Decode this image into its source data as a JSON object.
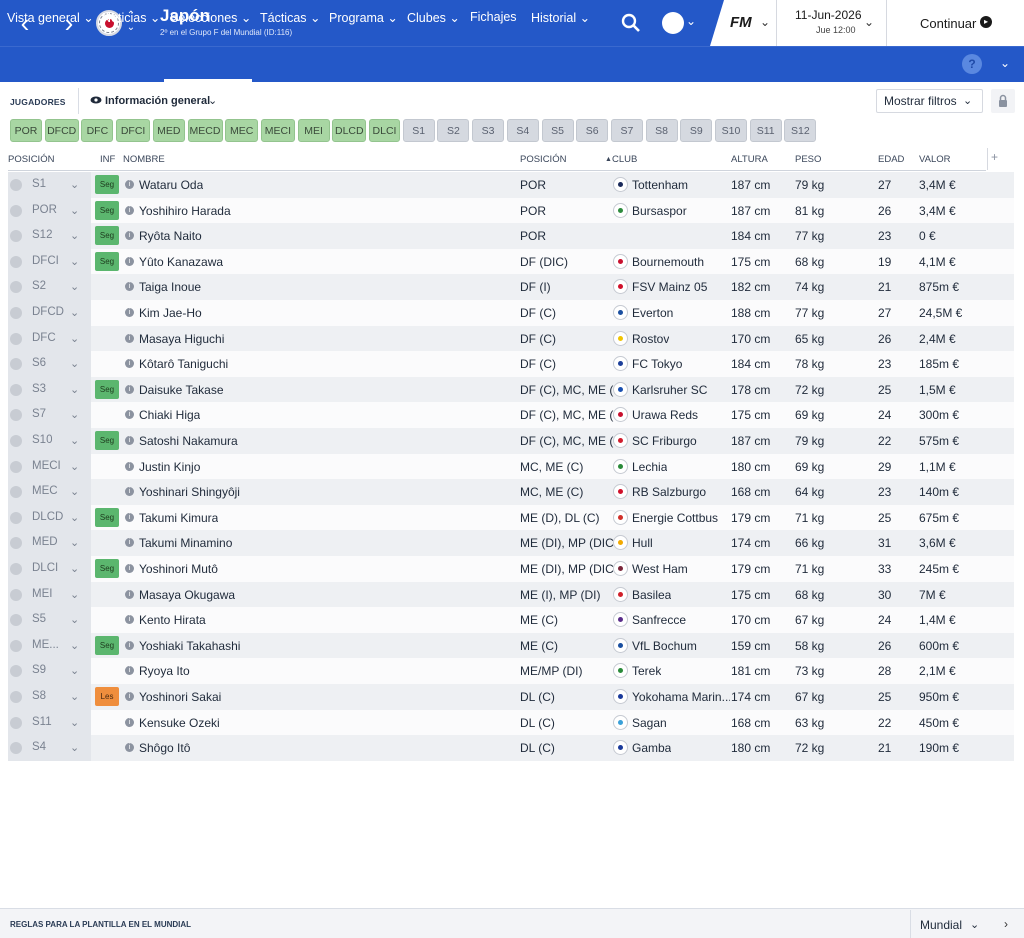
{
  "header": {
    "title": "Japón",
    "subtitle": "2º en el Grupo F del Mundial (ID:116)",
    "date": "11-Jun-2026",
    "time": "Jue 12:00",
    "continue_label": "Continuar",
    "logo_text": "FM"
  },
  "menu": [
    {
      "label": "Vista general ⌄"
    },
    {
      "label": "Noticias ⌄"
    },
    {
      "label": "Selecciones ⌄"
    },
    {
      "label": "Tácticas ⌄"
    },
    {
      "label": "Programa ⌄"
    },
    {
      "label": "Clubes ⌄"
    },
    {
      "label": "Fichajes"
    },
    {
      "label": "Historial ⌄"
    }
  ],
  "toolbar": {
    "section_label": "JUGADORES",
    "view_label": "Información general",
    "filters_label": "Mostrar filtros"
  },
  "chips": [
    {
      "label": "POR",
      "color": "green"
    },
    {
      "label": "DFCD",
      "color": "green"
    },
    {
      "label": "DFC",
      "color": "green"
    },
    {
      "label": "DFCI",
      "color": "green"
    },
    {
      "label": "MED",
      "color": "green"
    },
    {
      "label": "MECD",
      "color": "green"
    },
    {
      "label": "MEC",
      "color": "green"
    },
    {
      "label": "MECI",
      "color": "green"
    },
    {
      "label": "MEI",
      "color": "green"
    },
    {
      "label": "DLCD",
      "color": "green"
    },
    {
      "label": "DLCI",
      "color": "green"
    },
    {
      "label": "S1",
      "color": "grey"
    },
    {
      "label": "S2",
      "color": "grey"
    },
    {
      "label": "S3",
      "color": "grey"
    },
    {
      "label": "S4",
      "color": "grey"
    },
    {
      "label": "S5",
      "color": "grey"
    },
    {
      "label": "S6",
      "color": "grey"
    },
    {
      "label": "S7",
      "color": "grey"
    },
    {
      "label": "S8",
      "color": "grey"
    },
    {
      "label": "S9",
      "color": "grey"
    },
    {
      "label": "S10",
      "color": "grey"
    },
    {
      "label": "S11",
      "color": "grey"
    },
    {
      "label": "S12",
      "color": "grey"
    }
  ],
  "columns": {
    "position_slot": "POSICIÓN",
    "inf": "INF",
    "name": "NOMBRE",
    "position": "POSICIÓN",
    "club": "CLUB",
    "height": "ALTURA",
    "weight": "PESO",
    "age": "EDAD",
    "value": "VALOR"
  },
  "players": [
    {
      "slot": "S1",
      "badge": "Seg",
      "name": "Wataru Oda",
      "position": "POR",
      "club": "Tottenham",
      "club_color": "#1a2a5a",
      "height": "187 cm",
      "weight": "79 kg",
      "age": "27",
      "value": "3,4M €"
    },
    {
      "slot": "POR",
      "badge": "Seg",
      "name": "Yoshihiro Harada",
      "position": "POR",
      "club": "Bursaspor",
      "club_color": "#2e8b3e",
      "height": "187 cm",
      "weight": "81 kg",
      "age": "26",
      "value": "3,4M €"
    },
    {
      "slot": "S12",
      "badge": "Seg",
      "name": "Ryôta Naito",
      "position": "POR",
      "club": "",
      "club_color": "",
      "height": "184 cm",
      "weight": "77 kg",
      "age": "23",
      "value": "0 €"
    },
    {
      "slot": "DFCI",
      "badge": "Seg",
      "name": "Yûto Kanazawa",
      "position": "DF (DIC)",
      "club": "Bournemouth",
      "club_color": "#c8102e",
      "height": "175 cm",
      "weight": "68 kg",
      "age": "19",
      "value": "4,1M €"
    },
    {
      "slot": "S2",
      "badge": "",
      "name": "Taiga Inoue",
      "position": "DF (I)",
      "club": "FSV Mainz 05",
      "club_color": "#d0102a",
      "height": "182 cm",
      "weight": "74 kg",
      "age": "21",
      "value": "875m €"
    },
    {
      "slot": "DFCD",
      "badge": "",
      "name": "Kim Jae-Ho",
      "position": "DF (C)",
      "club": "Everton",
      "club_color": "#1b4fa0",
      "height": "188 cm",
      "weight": "77 kg",
      "age": "27",
      "value": "24,5M €"
    },
    {
      "slot": "DFC",
      "badge": "",
      "name": "Masaya Higuchi",
      "position": "DF (C)",
      "club": "Rostov",
      "club_color": "#f0c400",
      "height": "170 cm",
      "weight": "65 kg",
      "age": "26",
      "value": "2,4M €"
    },
    {
      "slot": "S6",
      "badge": "",
      "name": "Kôtarô Taniguchi",
      "position": "DF (C)",
      "club": "FC Tokyo",
      "club_color": "#1d3f9a",
      "height": "184 cm",
      "weight": "78 kg",
      "age": "23",
      "value": "185m €"
    },
    {
      "slot": "S3",
      "badge": "Seg",
      "name": "Daisuke Takase",
      "position": "DF (C), MC, ME (...",
      "club": "Karlsruher SC",
      "club_color": "#1a4fb0",
      "height": "178 cm",
      "weight": "72 kg",
      "age": "25",
      "value": "1,5M €"
    },
    {
      "slot": "S7",
      "badge": "",
      "name": "Chiaki Higa",
      "position": "DF (C), MC, ME (...",
      "club": "Urawa Reds",
      "club_color": "#c8102e",
      "height": "175 cm",
      "weight": "69 kg",
      "age": "24",
      "value": "300m €"
    },
    {
      "slot": "S10",
      "badge": "Seg",
      "name": "Satoshi Nakamura",
      "position": "DF (C), MC, ME (...",
      "club": "SC Friburgo",
      "club_color": "#d01e2e",
      "height": "187 cm",
      "weight": "79 kg",
      "age": "22",
      "value": "575m €"
    },
    {
      "slot": "MECI",
      "badge": "",
      "name": "Justin Kinjo",
      "position": "MC, ME (C)",
      "club": "Lechia",
      "club_color": "#2a8a3a",
      "height": "180 cm",
      "weight": "69 kg",
      "age": "29",
      "value": "1,1M €"
    },
    {
      "slot": "MEC",
      "badge": "",
      "name": "Yoshinari Shingyôji",
      "position": "MC, ME (C)",
      "club": "RB Salzburgo",
      "club_color": "#d0102a",
      "height": "168 cm",
      "weight": "64 kg",
      "age": "23",
      "value": "140m €"
    },
    {
      "slot": "DLCD",
      "badge": "Seg",
      "name": "Takumi Kimura",
      "position": "ME (D), DL (C)",
      "club": "Energie Cottbus",
      "club_color": "#d0302a",
      "height": "179 cm",
      "weight": "71 kg",
      "age": "25",
      "value": "675m €"
    },
    {
      "slot": "MED",
      "badge": "",
      "name": "Takumi Minamino",
      "position": "ME (DI), MP (DIC)",
      "club": "Hull",
      "club_color": "#f2a900",
      "height": "174 cm",
      "weight": "66 kg",
      "age": "31",
      "value": "3,6M €"
    },
    {
      "slot": "DLCI",
      "badge": "Seg",
      "name": "Yoshinori Mutô",
      "position": "ME (DI), MP (DIC...",
      "club": "West Ham",
      "club_color": "#7a263a",
      "height": "179 cm",
      "weight": "71 kg",
      "age": "33",
      "value": "245m €"
    },
    {
      "slot": "MEI",
      "badge": "",
      "name": "Masaya Okugawa",
      "position": "ME (I), MP (DI)",
      "club": "Basilea",
      "club_color": "#d0202a",
      "height": "175 cm",
      "weight": "68 kg",
      "age": "30",
      "value": "7M €"
    },
    {
      "slot": "S5",
      "badge": "",
      "name": "Kento Hirata",
      "position": "ME (C)",
      "club": "Sanfrecce",
      "club_color": "#5a2d8a",
      "height": "170 cm",
      "weight": "67 kg",
      "age": "24",
      "value": "1,4M €"
    },
    {
      "slot": "ME...",
      "badge": "Seg",
      "name": "Yoshiaki Takahashi",
      "position": "ME (C)",
      "club": "VfL Bochum",
      "club_color": "#1a4fa0",
      "height": "159 cm",
      "weight": "58 kg",
      "age": "26",
      "value": "600m €"
    },
    {
      "slot": "S9",
      "badge": "",
      "name": "Ryoya Ito",
      "position": "ME/MP (DI)",
      "club": "Terek",
      "club_color": "#2a8a3a",
      "height": "181 cm",
      "weight": "73 kg",
      "age": "28",
      "value": "2,1M €"
    },
    {
      "slot": "S8",
      "badge": "Les",
      "name": "Yoshinori Sakai",
      "position": "DL (C)",
      "club": "Yokohama Marin...",
      "club_color": "#1a3a9a",
      "height": "174 cm",
      "weight": "67 kg",
      "age": "25",
      "value": "950m €"
    },
    {
      "slot": "S11",
      "badge": "",
      "name": "Kensuke Ozeki",
      "position": "DL (C)",
      "club": "Sagan",
      "club_color": "#3aa0d8",
      "height": "168 cm",
      "weight": "63 kg",
      "age": "22",
      "value": "450m €"
    },
    {
      "slot": "S4",
      "badge": "",
      "name": "Shôgo Itô",
      "position": "DL (C)",
      "club": "Gamba",
      "club_color": "#1a3a9a",
      "height": "180 cm",
      "weight": "72 kg",
      "age": "21",
      "value": "190m €"
    }
  ],
  "footer": {
    "label": "REGLAS PARA LA PLANTILLA EN EL MUNDIAL",
    "select_value": "Mundial"
  }
}
